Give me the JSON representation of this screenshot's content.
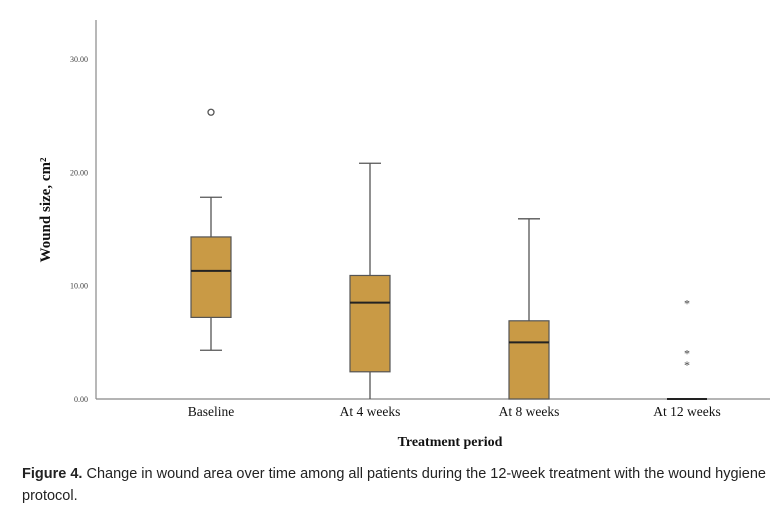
{
  "chart_data": {
    "type": "box",
    "xlabel": "Treatment period",
    "ylabel": "Wound size, cm²",
    "ylim": [
      0,
      32
    ],
    "yticks": [
      "0.00",
      "10.00",
      "20.00",
      "30.00"
    ],
    "yticks_values": [
      0,
      10,
      20,
      30
    ],
    "grid": false,
    "box_color": "#c99a45",
    "categories": [
      "Baseline",
      "At 4 weeks",
      "At 8 weeks",
      "At 12 weeks"
    ],
    "boxes": [
      {
        "min": 4.3,
        "q1": 7.2,
        "median": 11.3,
        "q3": 14.3,
        "max": 17.8,
        "outliers": [
          25.3
        ],
        "extremes": []
      },
      {
        "min": 0,
        "q1": 2.4,
        "median": 8.5,
        "q3": 10.9,
        "max": 20.8,
        "outliers": [],
        "extremes": []
      },
      {
        "min": 0,
        "q1": 0,
        "median": 5.0,
        "q3": 6.9,
        "max": 15.9,
        "outliers": [],
        "extremes": []
      },
      {
        "min": 0,
        "q1": 0,
        "median": 0,
        "q3": 0,
        "max": 0,
        "outliers": [],
        "extremes": [
          8.5,
          4.1,
          3.1
        ]
      }
    ]
  },
  "caption": {
    "label": "Figure 4.",
    "text": " Change in wound area over time among all patients during the 12-week treatment with the wound hygiene protocol."
  }
}
